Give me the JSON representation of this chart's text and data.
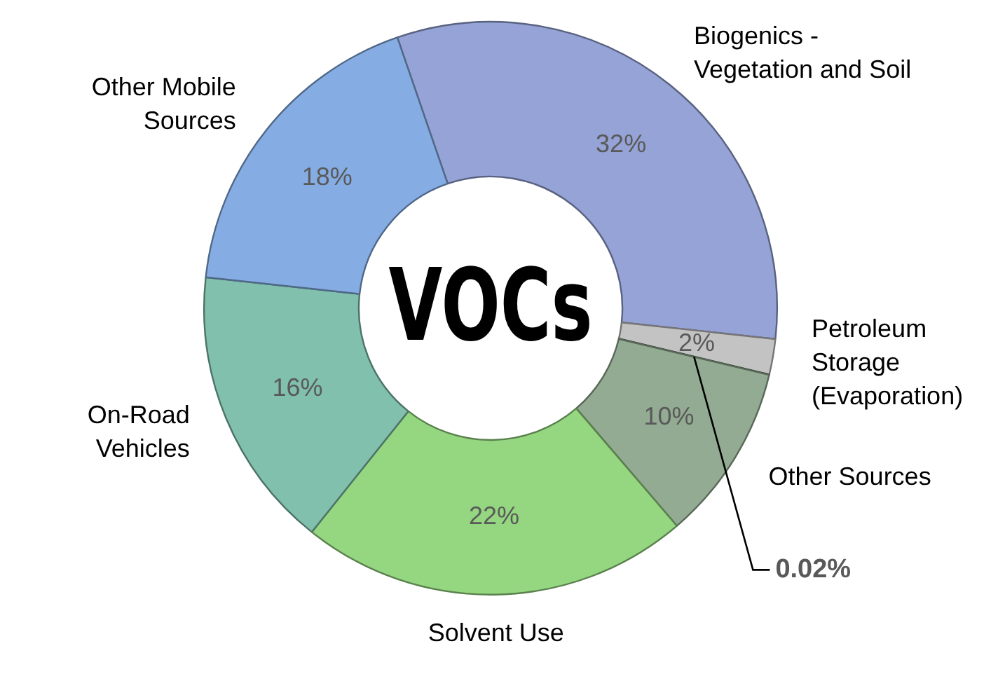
{
  "chart_data": {
    "type": "donut",
    "title": "VOCs",
    "categories": [
      "Biogenics -\nVegetation and Soil",
      "Petroleum\nStorage\n(Evaporation)",
      null,
      "Other Sources",
      "Solvent Use",
      "On-Road\nVehicles",
      "Other Mobile\nSources"
    ],
    "values": [
      32,
      2,
      0.02,
      10,
      22,
      16,
      18
    ],
    "colors": [
      "#95a3d6",
      "#c3c3c3",
      "#3d5a3d",
      "#93ab92",
      "#95d680",
      "#80c0ad",
      "#86ade3"
    ],
    "value_labels": [
      "32%",
      "2%",
      "0.02%",
      "10%",
      "22%",
      "16%",
      "18%"
    ],
    "legend": false
  }
}
